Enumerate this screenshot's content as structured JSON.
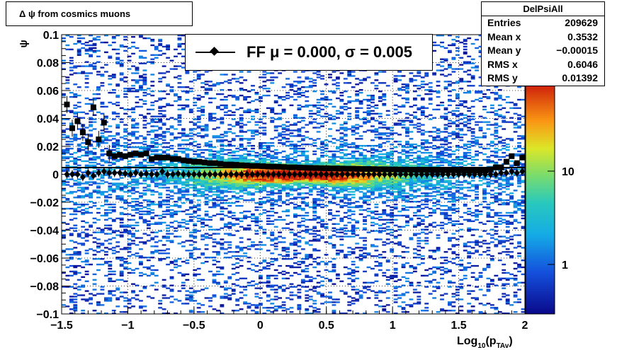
{
  "title": "Δ ψ from cosmics muons",
  "stats": {
    "name": "DelPsiAll",
    "rows": [
      {
        "label": "Entries",
        "value": "209629"
      },
      {
        "label": "Mean x",
        "value": "0.3532"
      },
      {
        "label": "Mean y",
        "value": "−0.00015"
      },
      {
        "label": "RMS x",
        "value": "0.6046"
      },
      {
        "label": "RMS y",
        "value": "0.01392"
      }
    ]
  },
  "legend": {
    "entry": "FF μ =  0.000, σ =   0.005"
  },
  "chart_data": {
    "type": "heatmap",
    "xlabel": "Log10(pTAv)",
    "ylabel": "ψ",
    "xlim": [
      -1.5,
      2
    ],
    "ylim": [
      -0.1,
      0.1
    ],
    "x_ticks": [
      "−1.5",
      "−1",
      "−0.5",
      "0",
      "0.5",
      "1",
      "1.5",
      "2"
    ],
    "y_ticks": [
      "−0.1",
      "−0.08",
      "−0.06",
      "−0.04",
      "−0.02",
      "0",
      "0.02",
      "0.04",
      "0.06",
      "0.08",
      "0.1"
    ],
    "z_scale": "log",
    "z_ticks": [
      "1",
      "10"
    ],
    "grid": true,
    "series": [
      {
        "marker": "square",
        "x": [
          -1.46,
          -1.42,
          -1.38,
          -1.34,
          -1.3,
          -1.26,
          -1.22,
          -1.18,
          -1.14,
          -1.1,
          -1.06,
          -1.02,
          -0.98,
          -0.94,
          -0.9,
          -0.86,
          -0.82,
          -0.78,
          -0.74,
          -0.7,
          -0.66,
          -0.62,
          -0.58,
          -0.54,
          -0.5,
          -0.46,
          -0.42,
          -0.38,
          -0.34,
          -0.3,
          -0.26,
          -0.22,
          -0.18,
          -0.14,
          -0.1,
          -0.06,
          -0.02,
          0.02,
          0.06,
          0.1,
          0.14,
          0.18,
          0.22,
          0.26,
          0.3,
          0.34,
          0.38,
          0.42,
          0.46,
          0.5,
          0.54,
          0.58,
          0.62,
          0.66,
          0.7,
          0.74,
          0.78,
          0.82,
          0.86,
          0.9,
          0.94,
          0.98,
          1.02,
          1.06,
          1.1,
          1.14,
          1.18,
          1.22,
          1.26,
          1.3,
          1.34,
          1.38,
          1.42,
          1.46,
          1.5,
          1.54,
          1.58,
          1.62,
          1.66,
          1.7,
          1.74,
          1.78,
          1.82,
          1.86,
          1.9,
          1.94,
          1.98
        ],
        "y": [
          0.05,
          0.033,
          0.038,
          0.03,
          0.023,
          0.048,
          0.025,
          0.037,
          0.015,
          0.013,
          0.014,
          0.013,
          0.014,
          0.015,
          0.014,
          0.015,
          0.011,
          0.012,
          0.012,
          0.012,
          0.011,
          0.011,
          0.01,
          0.0095,
          0.009,
          0.009,
          0.0085,
          0.008,
          0.008,
          0.0075,
          0.007,
          0.007,
          0.0068,
          0.0065,
          0.0063,
          0.006,
          0.006,
          0.0058,
          0.0056,
          0.0055,
          0.0054,
          0.0052,
          0.005,
          0.005,
          0.0048,
          0.0047,
          0.0046,
          0.0045,
          0.0044,
          0.0043,
          0.0042,
          0.0042,
          0.0041,
          0.004,
          0.004,
          0.0039,
          0.0038,
          0.0038,
          0.0037,
          0.0036,
          0.0036,
          0.0035,
          0.0035,
          0.0034,
          0.0034,
          0.0033,
          0.0033,
          0.0032,
          0.0032,
          0.0031,
          0.0031,
          0.003,
          0.003,
          0.003,
          0.0029,
          0.0029,
          0.0028,
          0.0028,
          0.0027,
          0.0028,
          0.0035,
          0.005,
          0.005,
          0.009,
          0.013,
          0.008,
          0.012
        ]
      },
      {
        "marker": "diamond",
        "x": [
          -1.46,
          -1.42,
          -1.38,
          -1.34,
          -1.3,
          -1.26,
          -1.22,
          -1.18,
          -1.14,
          -1.1,
          -1.06,
          -1.02,
          -0.98,
          -0.94,
          -0.9,
          -0.86,
          -0.82,
          -0.78,
          -0.74,
          -0.7,
          -0.66,
          -0.62,
          -0.58,
          -0.54,
          -0.5,
          -0.46,
          -0.42,
          -0.38,
          -0.34,
          -0.3,
          -0.26,
          -0.22,
          -0.18,
          -0.14,
          -0.1,
          -0.06,
          -0.02,
          0.02,
          0.06,
          0.1,
          0.14,
          0.18,
          0.22,
          0.26,
          0.3,
          0.34,
          0.38,
          0.42,
          0.46,
          0.5,
          0.54,
          0.58,
          0.62,
          0.66,
          0.7,
          0.74,
          0.78,
          0.82,
          0.86,
          0.9,
          0.94,
          0.98,
          1.02,
          1.06,
          1.1,
          1.14,
          1.18,
          1.22,
          1.26,
          1.3,
          1.34,
          1.38,
          1.42,
          1.46,
          1.5,
          1.54,
          1.58,
          1.62,
          1.66,
          1.7,
          1.74,
          1.78,
          1.82,
          1.86,
          1.9,
          1.94,
          1.98
        ],
        "y": [
          0.0,
          0.0,
          0.0,
          -0.002,
          0.001,
          -0.001,
          0.001,
          0.002,
          0.001,
          0.001,
          0.001,
          0.0005,
          0.0,
          0.001,
          0.0,
          0.0005,
          0.0,
          0.0,
          0.002,
          0.0,
          0.0,
          0.0005,
          0.0,
          0.0,
          0.0,
          0.0,
          0.0,
          0.0,
          0.0,
          0.0,
          0.0,
          0.0,
          0.0,
          0.0,
          0.0,
          0.0,
          0.0,
          0.0,
          0.0,
          0.0,
          0.0,
          0.0,
          0.0,
          0.0,
          0.0,
          0.0,
          0.0,
          0.0,
          0.0,
          0.0,
          0.0,
          0.0,
          0.0,
          0.0,
          0.0,
          0.0,
          0.0,
          0.0,
          0.0,
          0.0,
          0.0,
          0.0,
          0.0,
          0.0,
          0.0,
          0.0,
          0.0,
          0.0,
          0.0,
          0.0,
          0.0,
          0.0,
          0.0,
          0.0,
          0.0,
          0.0,
          0.0,
          0.0,
          0.0,
          0.0,
          0.0,
          0.0,
          0.001,
          0.001,
          0.002,
          0.001,
          0.002
        ]
      }
    ]
  }
}
